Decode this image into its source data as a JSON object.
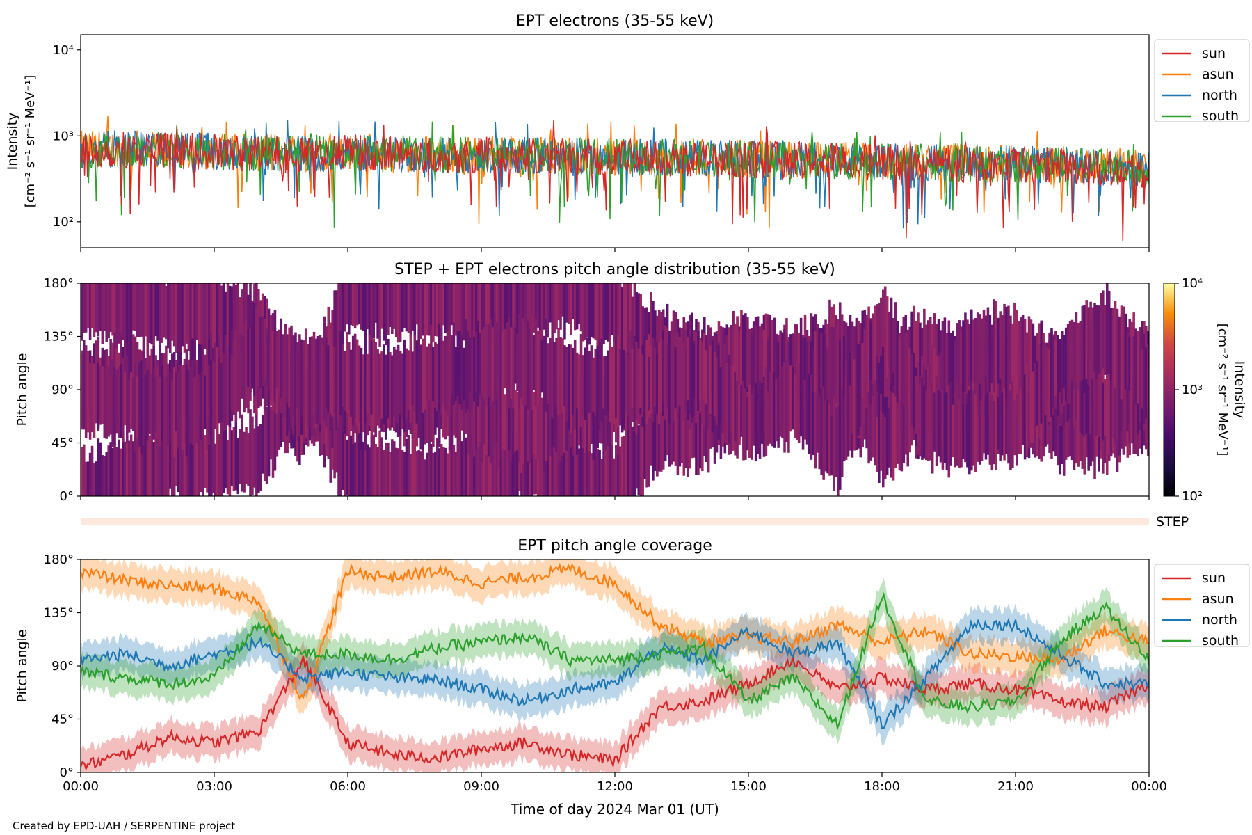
{
  "figure": {
    "footer": "Created by EPD-UAH / SERPENTINE project",
    "xlabel": "Time of day 2024 Mar 01 (UT)",
    "x_ticks": [
      "00:00",
      "03:00",
      "06:00",
      "09:00",
      "12:00",
      "15:00",
      "18:00",
      "21:00",
      "00:00"
    ]
  },
  "chart_data": [
    {
      "type": "line",
      "title": "EPT electrons (35-55 keV)",
      "ylabel": "Intensity",
      "ylabel_unit": "[cm⁻² s⁻¹ sr⁻¹ MeV⁻¹]",
      "yscale": "log",
      "ylim": [
        50,
        15000
      ],
      "y_ticks": [
        {
          "value": 100,
          "label": "10²"
        },
        {
          "value": 1000,
          "label": "10³"
        },
        {
          "value": 10000,
          "label": "10⁴"
        }
      ],
      "xlim_hours": [
        0,
        24
      ],
      "legend_position": "outside-right",
      "x": [
        0,
        1,
        2,
        3,
        4,
        5,
        6,
        7,
        8,
        9,
        10,
        11,
        12,
        13,
        14,
        15,
        16,
        17,
        18,
        19,
        20,
        21,
        22,
        23,
        24
      ],
      "series": [
        {
          "name": "sun",
          "color": "#d62728",
          "values": [
            650,
            700,
            680,
            640,
            620,
            600,
            640,
            620,
            600,
            610,
            590,
            580,
            560,
            560,
            540,
            530,
            520,
            500,
            490,
            480,
            470,
            460,
            450,
            430,
            400
          ]
        },
        {
          "name": "asun",
          "color": "#ff7f0e",
          "values": [
            700,
            720,
            690,
            660,
            650,
            640,
            650,
            630,
            620,
            620,
            600,
            590,
            580,
            570,
            560,
            550,
            530,
            520,
            510,
            500,
            490,
            470,
            460,
            450,
            420
          ]
        },
        {
          "name": "north",
          "color": "#1f77b4",
          "values": [
            680,
            710,
            700,
            670,
            640,
            620,
            630,
            620,
            600,
            600,
            590,
            580,
            570,
            560,
            550,
            540,
            520,
            510,
            500,
            490,
            480,
            470,
            460,
            440,
            420
          ]
        },
        {
          "name": "south",
          "color": "#2ca02c",
          "values": [
            690,
            700,
            690,
            650,
            630,
            620,
            640,
            620,
            610,
            600,
            590,
            580,
            570,
            560,
            540,
            530,
            520,
            510,
            500,
            480,
            470,
            460,
            450,
            440,
            410
          ]
        }
      ]
    },
    {
      "type": "heatmap",
      "title": "STEP + EPT electrons pitch angle distribution (35-55 keV)",
      "ylabel": "Pitch angle",
      "ylim": [
        0,
        180
      ],
      "y_ticks": [
        "0°",
        "45°",
        "90°",
        "135°",
        "180°"
      ],
      "xlim_hours": [
        0,
        24
      ],
      "colorbar": {
        "label": "Intensity",
        "unit": "[cm⁻² s⁻¹ sr⁻¹ MeV⁻¹]",
        "scale": "log",
        "range": [
          100,
          10000
        ],
        "ticks": [
          "10²",
          "10³",
          "10⁴"
        ],
        "colormap": "inferno"
      },
      "strip_label": "STEP"
    },
    {
      "type": "line",
      "title": "EPT pitch angle coverage",
      "ylabel": "Pitch angle",
      "ylim": [
        0,
        180
      ],
      "y_ticks": [
        "0°",
        "45°",
        "90°",
        "135°",
        "180°"
      ],
      "xlim_hours": [
        0,
        24
      ],
      "legend_position": "outside-right",
      "x": [
        0,
        1,
        2,
        3,
        4,
        5,
        6,
        7,
        8,
        9,
        10,
        11,
        12,
        13,
        14,
        15,
        16,
        17,
        18,
        19,
        20,
        21,
        22,
        23,
        24
      ],
      "series": [
        {
          "name": "sun",
          "color": "#d62728",
          "values": [
            5,
            15,
            30,
            25,
            35,
            95,
            25,
            15,
            12,
            20,
            25,
            15,
            10,
            55,
            60,
            75,
            95,
            70,
            80,
            70,
            75,
            70,
            60,
            55,
            75
          ]
        },
        {
          "name": "asun",
          "color": "#ff7f0e",
          "values": [
            170,
            162,
            158,
            155,
            145,
            60,
            170,
            165,
            170,
            160,
            165,
            172,
            160,
            125,
            110,
            115,
            110,
            125,
            110,
            120,
            100,
            98,
            95,
            120,
            110
          ]
        },
        {
          "name": "north",
          "color": "#1f77b4",
          "values": [
            95,
            100,
            90,
            100,
            110,
            80,
            85,
            80,
            78,
            70,
            60,
            70,
            75,
            105,
            95,
            120,
            100,
            110,
            40,
            80,
            125,
            125,
            100,
            75,
            75
          ]
        },
        {
          "name": "south",
          "color": "#2ca02c",
          "values": [
            85,
            80,
            75,
            80,
            125,
            100,
            100,
            95,
            105,
            110,
            115,
            95,
            95,
            100,
            105,
            60,
            80,
            40,
            150,
            60,
            55,
            60,
            110,
            140,
            95
          ]
        }
      ]
    }
  ]
}
